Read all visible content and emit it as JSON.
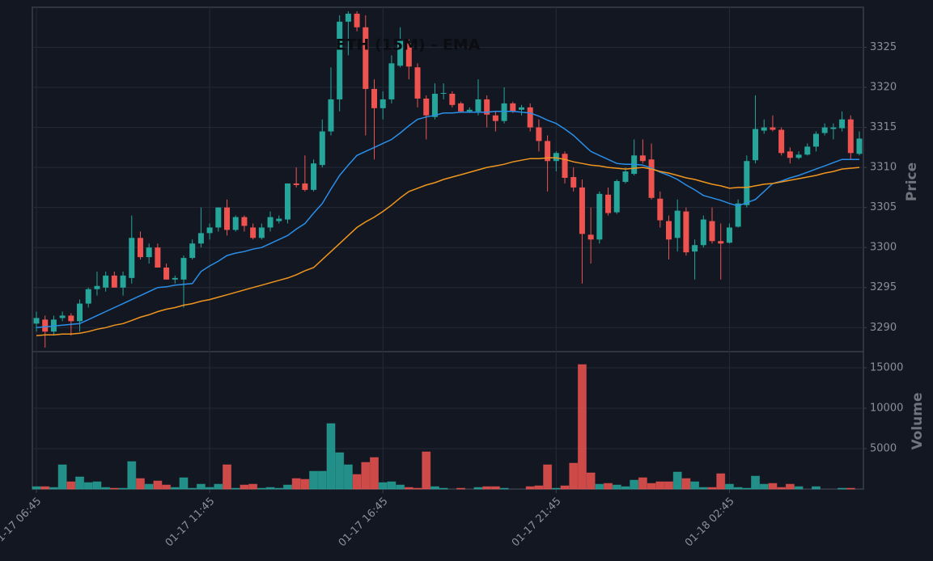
{
  "chart_data": [
    {
      "type": "candlestick",
      "title": "ETH (15M) - EMA",
      "y_label": "Price",
      "categories": [
        "01-17 06:45",
        null,
        null,
        null,
        null,
        null,
        null,
        null,
        null,
        null,
        null,
        null,
        null,
        null,
        null,
        null,
        null,
        null,
        null,
        null,
        "01-17 11:45",
        null,
        null,
        null,
        null,
        null,
        null,
        null,
        null,
        null,
        null,
        null,
        null,
        null,
        null,
        null,
        null,
        null,
        null,
        null,
        "01-17 16:45",
        null,
        null,
        null,
        null,
        null,
        null,
        null,
        null,
        null,
        null,
        null,
        null,
        null,
        null,
        null,
        null,
        null,
        null,
        null,
        "01-17 21:45",
        null,
        null,
        null,
        null,
        null,
        null,
        null,
        null,
        null,
        null,
        null,
        null,
        null,
        null,
        null,
        null,
        null,
        null,
        null,
        "01-18 02:45",
        null,
        null,
        null,
        null,
        null,
        null,
        null,
        null,
        null,
        null,
        null,
        null,
        null,
        null,
        null
      ],
      "open": [
        3290.5,
        3291,
        3289.5,
        3291.2,
        3291.5,
        3290.8,
        3293,
        3294.8,
        3295,
        3296.5,
        3295,
        3296.2,
        3301.2,
        3298.8,
        3300,
        3297.5,
        3296,
        3296,
        3298.7,
        3300.5,
        3301.8,
        3302.5,
        3305,
        3302.2,
        3303.8,
        3302.5,
        3301.2,
        3302.5,
        3303.3,
        3303.5,
        3308,
        3308,
        3307.2,
        3310.3,
        3314.5,
        3318.5,
        3328.2,
        3329.2,
        3327.5,
        3319.8,
        3317.4,
        3318.5,
        3322.7,
        3325.5,
        3322.5,
        3318.6,
        3316.3,
        3319.2,
        3319.2,
        3318,
        3317,
        3317,
        3318.5,
        3316.5,
        3315.8,
        3318,
        3317.2,
        3317.5,
        3315,
        3313.3,
        3310.8,
        3311.7,
        3308.8,
        3307.5,
        3301.6,
        3301,
        3306.6,
        3304.4,
        3308.2,
        3309.2,
        3311.5,
        3311,
        3306.1,
        3303.3,
        3301.2,
        3304.5,
        3299.5,
        3300.3,
        3303.3,
        3300.8,
        3300.6,
        3302.6,
        3305.3,
        3310.9,
        3314.6,
        3315,
        3314.7,
        3312,
        3311.2,
        3311.6,
        3312.6,
        3314.3,
        3314.8,
        3314.9,
        3316,
        3311.7
      ],
      "high": [
        3292,
        3291.5,
        3291.5,
        3292,
        3291.8,
        3293.5,
        3295,
        3297,
        3297,
        3297,
        3297,
        3304,
        3302,
        3300.5,
        3300.5,
        3298,
        3296.5,
        3299,
        3301,
        3305,
        3303,
        3305,
        3306,
        3304,
        3304,
        3303,
        3303,
        3304.5,
        3304,
        3308,
        3310,
        3311.5,
        3311,
        3316,
        3322.5,
        3329,
        3329.5,
        3329.5,
        3329,
        3321,
        3319.5,
        3324,
        3327.5,
        3326,
        3323,
        3319,
        3320.5,
        3320.5,
        3319.5,
        3318.2,
        3317.5,
        3321,
        3319,
        3317,
        3320,
        3318.2,
        3317.8,
        3318,
        3316,
        3314,
        3312,
        3312,
        3310,
        3308.5,
        3305,
        3307,
        3307.5,
        3308.5,
        3310,
        3313.5,
        3313.5,
        3313,
        3307,
        3304,
        3306,
        3305,
        3301,
        3304,
        3305,
        3303,
        3303,
        3306,
        3311.5,
        3319,
        3316,
        3316.5,
        3315,
        3312.5,
        3312,
        3313,
        3314.5,
        3315.5,
        3315.5,
        3317,
        3316.5,
        3314.5
      ],
      "low": [
        3289.5,
        3287.5,
        3289,
        3290.8,
        3289,
        3289.5,
        3292.5,
        3294,
        3294.5,
        3295,
        3294,
        3295.5,
        3298.5,
        3298,
        3297.5,
        3296,
        3295.5,
        3292.5,
        3298.5,
        3300,
        3301,
        3302,
        3301.5,
        3302,
        3302,
        3301,
        3301,
        3302,
        3303,
        3303,
        3307.5,
        3307,
        3307,
        3310,
        3314,
        3317,
        3324,
        3327,
        3314,
        3311,
        3316,
        3318,
        3322.5,
        3321,
        3317.5,
        3313.5,
        3316,
        3318.5,
        3317.5,
        3317,
        3316.8,
        3316.5,
        3315,
        3314.5,
        3315.5,
        3316.8,
        3316.5,
        3314.5,
        3312,
        3307,
        3309.5,
        3308,
        3307,
        3295.5,
        3298,
        3300.5,
        3304,
        3304.2,
        3308,
        3309,
        3310.5,
        3306,
        3302.5,
        3298.5,
        3299.5,
        3299,
        3296,
        3300,
        3300.5,
        3296,
        3300.5,
        3302.5,
        3305,
        3310.5,
        3314.2,
        3314.5,
        3311.5,
        3310.5,
        3311,
        3311.5,
        3312,
        3314,
        3313.5,
        3314.5,
        3311,
        3311.5
      ],
      "close": [
        3291.2,
        3289.5,
        3291,
        3291.5,
        3290.8,
        3293,
        3294.8,
        3295.2,
        3296.5,
        3295,
        3296.5,
        3301.2,
        3298.8,
        3300,
        3297.5,
        3296,
        3296.2,
        3298.7,
        3300.5,
        3301.8,
        3302.5,
        3305,
        3302.2,
        3303.8,
        3302.7,
        3301.2,
        3302.5,
        3303.8,
        3303.6,
        3308,
        3307.8,
        3307.2,
        3310.5,
        3314.5,
        3318.5,
        3328.2,
        3329.2,
        3327.5,
        3319.8,
        3317.4,
        3318.5,
        3323,
        3325.8,
        3322.6,
        3318.6,
        3316.5,
        3319.2,
        3319.3,
        3317.8,
        3317,
        3317.2,
        3318.5,
        3316.6,
        3315.8,
        3318,
        3317,
        3317.5,
        3315,
        3313.3,
        3310.8,
        3311.8,
        3308.7,
        3307.5,
        3301.7,
        3301,
        3306.7,
        3304.3,
        3308.3,
        3309.5,
        3311.5,
        3310.8,
        3306.2,
        3303.4,
        3301,
        3304.6,
        3299.4,
        3300.3,
        3303.5,
        3300.8,
        3300.5,
        3302.5,
        3305.5,
        3310.8,
        3314.8,
        3315,
        3314.7,
        3311.8,
        3311.2,
        3311.6,
        3312.6,
        3314.2,
        3315,
        3315,
        3316,
        3311.8,
        3313.6
      ],
      "series": [
        {
          "color": "#2a8fe8",
          "values": [
            3290.0,
            3290.1,
            3290.2,
            3290.3,
            3290.4,
            3290.5,
            3291.0,
            3291.5,
            3292.0,
            3292.5,
            3293.0,
            3293.5,
            3294.0,
            3294.5,
            3295.0,
            3295.1,
            3295.3,
            3295.4,
            3295.5,
            3297.0,
            3297.7,
            3298.3,
            3299.0,
            3299.3,
            3299.5,
            3299.8,
            3300.0,
            3300.5,
            3301.0,
            3301.5,
            3302.3,
            3303.0,
            3304.3,
            3305.5,
            3307.3,
            3309.0,
            3310.3,
            3311.5,
            3312.0,
            3312.5,
            3313.0,
            3313.5,
            3314.3,
            3315.2,
            3316.0,
            3316.3,
            3316.5,
            3316.8,
            3316.8,
            3316.9,
            3316.9,
            3316.9,
            3316.9,
            3317.0,
            3317.0,
            3317.0,
            3316.9,
            3316.8,
            3316.4,
            3315.9,
            3315.5,
            3314.8,
            3314.0,
            3313.0,
            3312.0,
            3311.5,
            3311.0,
            3310.5,
            3310.4,
            3310.4,
            3310.3,
            3309.9,
            3309.4,
            3309.0,
            3308.5,
            3307.8,
            3307.2,
            3306.5,
            3306.2,
            3305.9,
            3305.5,
            3305.2,
            3305.6,
            3306.0,
            3307.0,
            3308.0,
            3308.3,
            3308.7,
            3309.0,
            3309.4,
            3309.8,
            3310.2,
            3310.6,
            3311.0,
            3311.0,
            3311.0
          ]
        },
        {
          "color": "#f0961e",
          "values": [
            3289.0,
            3289.1,
            3289.1,
            3289.2,
            3289.2,
            3289.3,
            3289.5,
            3289.8,
            3290.0,
            3290.3,
            3290.5,
            3290.9,
            3291.3,
            3291.6,
            3292.0,
            3292.3,
            3292.5,
            3292.8,
            3293.0,
            3293.3,
            3293.5,
            3293.8,
            3294.1,
            3294.4,
            3294.7,
            3295.0,
            3295.3,
            3295.6,
            3295.9,
            3296.2,
            3296.6,
            3297.1,
            3297.5,
            3298.5,
            3299.5,
            3300.5,
            3301.5,
            3302.5,
            3303.2,
            3303.8,
            3304.5,
            3305.3,
            3306.2,
            3307.0,
            3307.4,
            3307.8,
            3308.1,
            3308.5,
            3308.8,
            3309.1,
            3309.4,
            3309.7,
            3310.0,
            3310.2,
            3310.4,
            3310.7,
            3310.9,
            3311.1,
            3311.1,
            3311.2,
            3311.2,
            3311.0,
            3310.7,
            3310.5,
            3310.3,
            3310.2,
            3310.0,
            3309.9,
            3309.8,
            3309.9,
            3310.0,
            3309.8,
            3309.5,
            3309.3,
            3309.0,
            3308.7,
            3308.5,
            3308.2,
            3307.9,
            3307.7,
            3307.4,
            3307.5,
            3307.5,
            3307.7,
            3307.9,
            3308.0,
            3308.2,
            3308.4,
            3308.6,
            3308.8,
            3309.0,
            3309.3,
            3309.5,
            3309.8,
            3309.9,
            3310.0
          ]
        }
      ],
      "up_color": "#26a69a",
      "down_color": "#ef5350",
      "ylim": [
        3287,
        3330
      ],
      "yticks": [
        3290,
        3295,
        3300,
        3305,
        3310,
        3315,
        3320,
        3325
      ],
      "grid": true
    },
    {
      "type": "bar",
      "y_label": "Volume",
      "values": [
        300,
        300,
        200,
        3000,
        900,
        1500,
        800,
        900,
        200,
        100,
        100,
        3400,
        1300,
        600,
        1000,
        500,
        200,
        1400,
        100,
        600,
        200,
        600,
        3000,
        100,
        500,
        600,
        100,
        200,
        100,
        500,
        1300,
        1200,
        2200,
        2200,
        8100,
        4500,
        3000,
        1800,
        3300,
        3900,
        800,
        900,
        500,
        200,
        100,
        4600,
        300,
        100,
        0,
        100,
        0,
        200,
        300,
        300,
        100,
        0,
        0,
        300,
        400,
        3000,
        100,
        400,
        3200,
        15400,
        2000,
        600,
        700,
        500,
        300,
        1100,
        1400,
        700,
        900,
        900,
        2100,
        1300,
        900,
        200,
        200,
        1900,
        600,
        200,
        100,
        1600,
        600,
        700,
        200,
        600,
        300,
        0,
        300,
        0,
        0,
        100,
        100,
        0
      ],
      "ylim": [
        0,
        16800
      ],
      "yticks": [
        5000,
        10000,
        15000
      ],
      "grid": true
    }
  ]
}
